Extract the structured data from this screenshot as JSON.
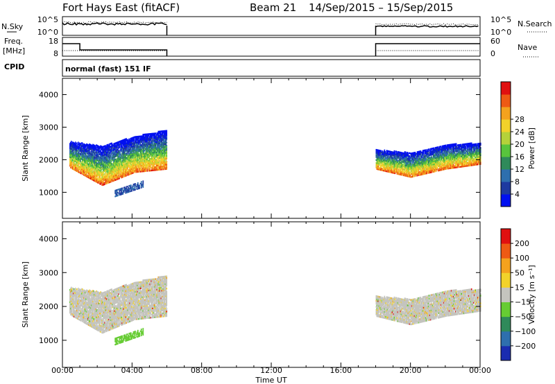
{
  "header": {
    "station": "Fort Hays East (fitACF)",
    "beam": "Beam 21",
    "dates": "14/Sep/2015 – 15/Sep/2015"
  },
  "side_labels": {
    "nsky": "N.Sky",
    "nsearch": "N.Search",
    "freq_line1": "Freq.",
    "freq_line2": "[MHz]",
    "nave": "Nave",
    "cpid": "CPID",
    "cpid_value": "normal (fast) 151 IF"
  },
  "noise_axis": {
    "left_ticks": [
      "10^5",
      "10^0"
    ],
    "right_ticks": [
      "10^5",
      "10^0"
    ]
  },
  "freq_axis": {
    "left_ticks": [
      "18",
      "8"
    ],
    "right_ticks": [
      "60",
      "0"
    ]
  },
  "chart_data": [
    {
      "type": "heatmap",
      "title": "",
      "ylabel": "Slant Range [km]",
      "xlabel": "Time UT",
      "x_ticks": [
        "00:00",
        "04:00",
        "08:00",
        "12:00",
        "16:00",
        "20:00",
        "00:00"
      ],
      "y_ticks": [
        1000,
        2000,
        3000,
        4000
      ],
      "ylim": [
        200,
        4500
      ],
      "xlim_hours": [
        0,
        24
      ],
      "colorbar": {
        "label": "Power [dB]",
        "ticks": [
          "4",
          "8",
          "12",
          "16",
          "20",
          "24",
          "28"
        ],
        "colors": [
          "#0010f0",
          "#1e3aa0",
          "#2e6fae",
          "#2f8a5a",
          "#58c43c",
          "#b5d23a",
          "#f2d22a",
          "#f4a21e",
          "#ee5a14",
          "#e01010"
        ]
      },
      "regions": [
        {
          "t": [
            0.4,
            6.0
          ],
          "band": [
            [
              1750,
              2550
            ],
            [
              1200,
              2400
            ],
            [
              1600,
              2700
            ],
            [
              1700,
              2900
            ]
          ]
        },
        {
          "t": [
            18.0,
            24.0
          ],
          "band": [
            [
              1700,
              2300
            ],
            [
              1450,
              2200
            ],
            [
              1700,
              2450
            ],
            [
              1850,
              2500
            ]
          ]
        }
      ]
    },
    {
      "type": "heatmap",
      "title": "",
      "ylabel": "Slant Range [km]",
      "xlabel": "Time UT",
      "x_ticks": [
        "00:00",
        "04:00",
        "08:00",
        "12:00",
        "16:00",
        "20:00",
        "00:00"
      ],
      "y_ticks": [
        1000,
        2000,
        3000,
        4000
      ],
      "ylim": [
        200,
        4500
      ],
      "xlim_hours": [
        0,
        24
      ],
      "colorbar": {
        "label": "Velocity [m s⁻¹]",
        "ticks": [
          "200",
          "100",
          "50",
          "15",
          "−15",
          "−50",
          "−100",
          "−200"
        ],
        "colors": [
          "#1a2cb0",
          "#2e6fae",
          "#2f8a5a",
          "#66cc33",
          "#c4c4be",
          "#f2d22a",
          "#f4a21e",
          "#ee5a14",
          "#e01010"
        ]
      }
    }
  ]
}
